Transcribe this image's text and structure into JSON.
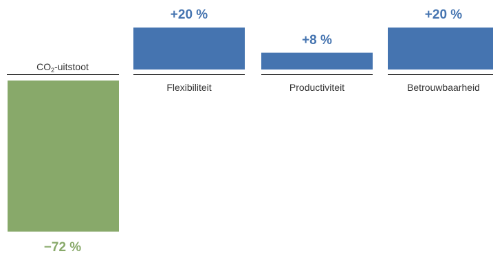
{
  "chart_data": {
    "type": "bar",
    "categories": [
      "CO₂-uitstoot",
      "Flexibiliteit",
      "Productiviteit",
      "Betrouwbaarheid"
    ],
    "values": [
      -72,
      20,
      8,
      20
    ],
    "value_labels": [
      "−72 %",
      "+20 %",
      "+8 %",
      "+20 %"
    ],
    "colors": [
      "#88a96a",
      "#4574b0",
      "#4574b0",
      "#4574b0"
    ]
  }
}
